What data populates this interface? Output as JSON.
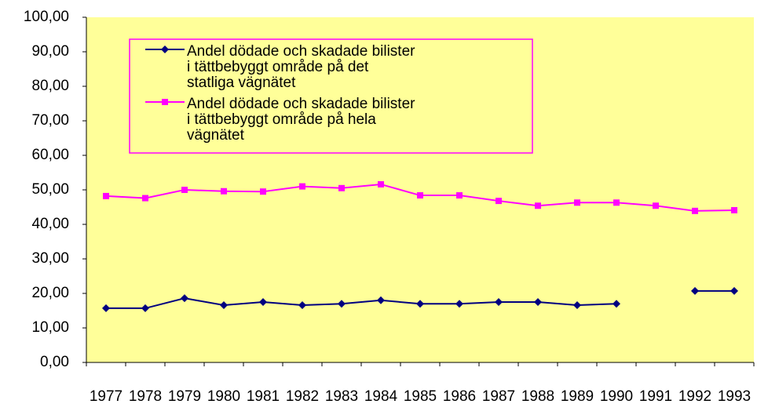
{
  "chart_data": {
    "type": "line",
    "categories": [
      "1977",
      "1978",
      "1979",
      "1980",
      "1981",
      "1982",
      "1983",
      "1984",
      "1985",
      "1986",
      "1987",
      "1988",
      "1989",
      "1990",
      "1991",
      "1992",
      "1993"
    ],
    "series": [
      {
        "name": "Andel dödade och skadade bilister i tättbebyggt område på det statliga vägnätet",
        "color": "#000080",
        "values": [
          15.7,
          15.7,
          18.6,
          16.6,
          17.5,
          16.6,
          17.0,
          18.0,
          17.0,
          17.0,
          17.5,
          17.5,
          16.6,
          17.0,
          null,
          20.7,
          20.7
        ]
      },
      {
        "name": "Andel dödade och skadade bilister i tättbebyggt område på hela vägnätet",
        "color": "#ff00ff",
        "values": [
          48.2,
          47.6,
          50.0,
          49.6,
          49.5,
          51.0,
          50.5,
          51.6,
          48.4,
          48.4,
          46.8,
          45.4,
          46.3,
          46.3,
          45.4,
          43.9,
          44.1
        ]
      }
    ],
    "ylim": [
      0,
      100
    ],
    "yticks": [
      {
        "value": 0,
        "label": "0,00"
      },
      {
        "value": 10,
        "label": "10,00"
      },
      {
        "value": 20,
        "label": "20,00"
      },
      {
        "value": 30,
        "label": "30,00"
      },
      {
        "value": 40,
        "label": "40,00"
      },
      {
        "value": 50,
        "label": "50,00"
      },
      {
        "value": 60,
        "label": "60,00"
      },
      {
        "value": 70,
        "label": "70,00"
      },
      {
        "value": 80,
        "label": "80,00"
      },
      {
        "value": 90,
        "label": "90,00"
      },
      {
        "value": 100,
        "label": "100,00"
      }
    ],
    "grid": false
  }
}
